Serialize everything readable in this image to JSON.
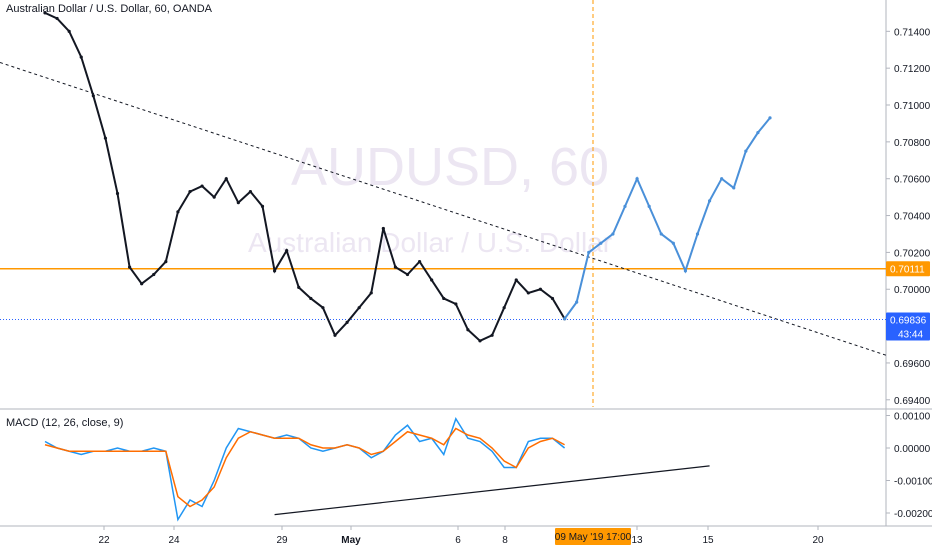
{
  "header": {
    "title": "Australian Dollar / U.S. Dollar, 60, OANDA"
  },
  "watermark": {
    "symbol": "AUDUSD, 60",
    "description": "Australian Dollar / U.S. Dollar"
  },
  "price_axis": {
    "ticks": [
      "0.71400",
      "0.71200",
      "0.71000",
      "0.70800",
      "0.70600",
      "0.70400",
      "0.70200",
      "0.70000",
      "0.69800",
      "0.69600",
      "0.69400"
    ],
    "horizontal_level_label": "0.70111",
    "last_price_label": "0.69836",
    "countdown_label": "43:44"
  },
  "macd": {
    "title": "MACD (12, 26, close, 9)",
    "ticks": [
      "0.00100",
      "0.00000",
      "-0.00100",
      "-0.00200"
    ]
  },
  "time_axis": {
    "ticks": [
      "22",
      "24",
      "29",
      "May",
      "6",
      "8",
      "13",
      "15",
      "20"
    ],
    "cursor_label": "09 May '19   17:00"
  },
  "colors": {
    "candles": "#131722",
    "projection": "#4a90d9",
    "horizontal_level": "#ff9800",
    "last_price": "#2962ff",
    "macd_line": "#2196f3",
    "signal_line": "#ff6d00",
    "cursor": "#ff9800"
  },
  "chart_data": {
    "type": "line",
    "title": "Australian Dollar / U.S. Dollar, 60, OANDA",
    "x_labels": [
      "22",
      "24",
      "29",
      "May",
      "6",
      "8",
      "13",
      "15",
      "20"
    ],
    "ylim": [
      0.6935,
      0.7157
    ],
    "horizontal_level": 0.70111,
    "last_price": 0.69836,
    "grid": false,
    "series": [
      {
        "role": "price-history",
        "x": [
          0,
          4,
          8,
          12,
          16,
          20,
          24,
          28,
          32,
          36,
          40,
          44,
          48,
          52,
          56,
          60,
          64,
          68,
          72,
          76,
          80,
          84,
          88,
          92,
          96,
          100,
          104,
          108,
          112,
          116,
          120,
          124,
          128,
          132,
          136,
          140,
          144,
          148,
          152,
          156,
          160,
          164,
          168,
          172
        ],
        "values": [
          0.715,
          0.7147,
          0.714,
          0.7126,
          0.7105,
          0.7082,
          0.7052,
          0.7012,
          0.7003,
          0.7008,
          0.7015,
          0.7042,
          0.7053,
          0.7056,
          0.705,
          0.706,
          0.7047,
          0.7053,
          0.7045,
          0.701,
          0.7021,
          0.7001,
          0.6995,
          0.699,
          0.6975,
          0.6982,
          0.699,
          0.6998,
          0.7033,
          0.7012,
          0.7008,
          0.7015,
          0.7005,
          0.6995,
          0.6992,
          0.6978,
          0.6972,
          0.6975,
          0.699,
          0.7005,
          0.6998,
          0.7,
          0.6995,
          0.6984
        ]
      },
      {
        "role": "projection",
        "x": [
          172,
          176,
          180,
          184,
          188,
          192,
          196,
          200,
          204,
          208,
          212,
          216,
          220,
          224,
          228,
          232,
          236,
          240
        ],
        "values": [
          0.6984,
          0.6993,
          0.702,
          0.7025,
          0.703,
          0.7045,
          0.706,
          0.7045,
          0.703,
          0.7025,
          0.701,
          0.703,
          0.7048,
          0.706,
          0.7055,
          0.7075,
          0.7085,
          0.7093
        ]
      },
      {
        "role": "trendline",
        "x": [
          0,
          240
        ],
        "values": [
          0.7115,
          0.6985
        ]
      }
    ],
    "macd_panel": {
      "title": "MACD (12, 26, close, 9)",
      "ylim": [
        -0.0024,
        0.0012
      ],
      "macd_values": [
        0.0002,
        0.0,
        -0.0001,
        -0.0002,
        -0.0001,
        -0.0001,
        0.0,
        -0.0001,
        -0.0001,
        0.0,
        -0.0001,
        -0.0022,
        -0.0016,
        -0.0018,
        -0.001,
        0.0,
        0.0006,
        0.0005,
        0.0004,
        0.0003,
        0.0004,
        0.0003,
        0.0,
        -0.0001,
        0.0,
        0.0001,
        0.0,
        -0.0003,
        -0.0001,
        0.0004,
        0.0007,
        0.0002,
        0.0003,
        -0.0002,
        0.0009,
        0.0003,
        0.0002,
        -0.0001,
        -0.0006,
        -0.0006,
        0.0002,
        0.0003,
        0.0003,
        0.0
      ],
      "signal_values": [
        0.0001,
        0.0,
        -0.0001,
        -0.0001,
        -0.0001,
        -0.0001,
        -0.0001,
        -0.0001,
        -0.0001,
        -0.0001,
        -0.0001,
        -0.0015,
        -0.0018,
        -0.0016,
        -0.0012,
        -0.0003,
        0.0003,
        0.0005,
        0.0004,
        0.0003,
        0.0003,
        0.0003,
        0.0001,
        0.0,
        0.0,
        0.0001,
        0.0,
        -0.0002,
        -0.0001,
        0.0002,
        0.0005,
        0.0004,
        0.0003,
        0.0001,
        0.0006,
        0.0004,
        0.0003,
        0.0,
        -0.0004,
        -0.0006,
        0.0,
        0.0002,
        0.0003,
        0.0001
      ],
      "trendline": {
        "x": [
          76,
          220
        ],
        "values": [
          -0.00205,
          -0.00055
        ]
      }
    }
  }
}
